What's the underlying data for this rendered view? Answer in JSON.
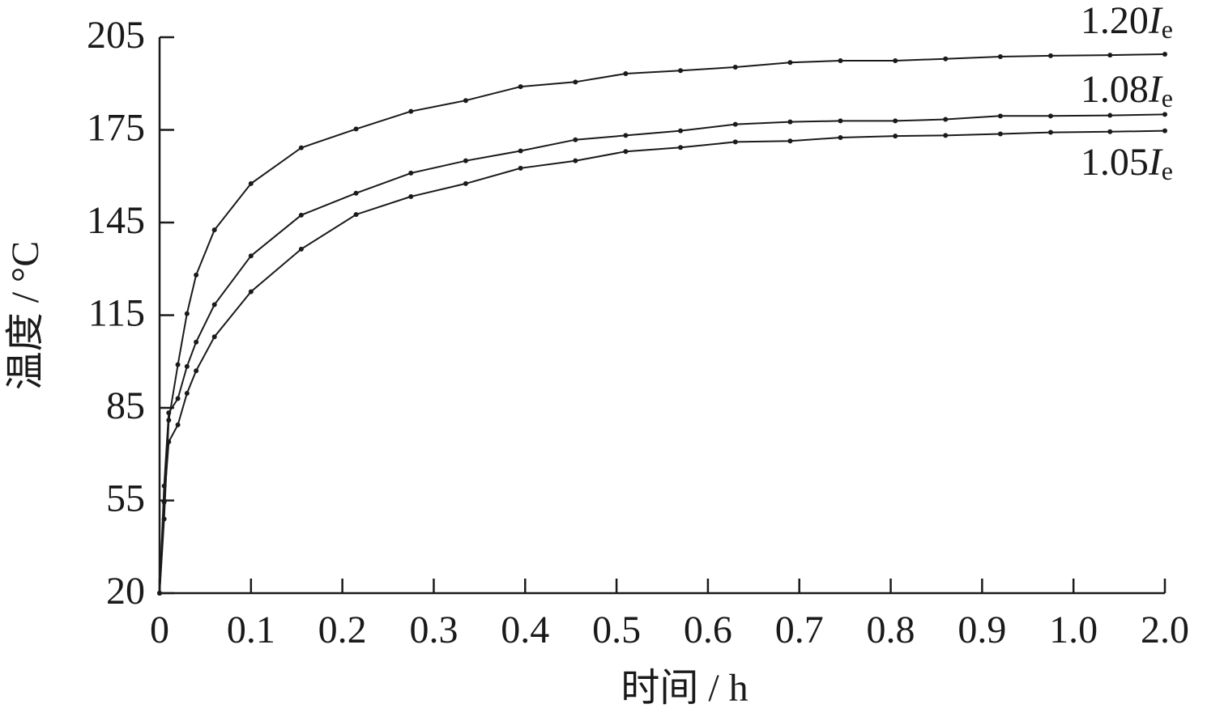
{
  "chart_data": {
    "type": "line",
    "x_label": "时间 / h",
    "y_label": "温度 / °C",
    "x": [
      0,
      0.005,
      0.01,
      0.02,
      0.03,
      0.04,
      0.06,
      0.1,
      0.155,
      0.215,
      0.275,
      0.335,
      0.395,
      0.455,
      0.51,
      0.57,
      0.63,
      0.69,
      0.745,
      0.805,
      0.86,
      0.92,
      0.975,
      1.4,
      2.0
    ],
    "series": [
      {
        "name": "1.20Ie",
        "color": "#1a1a1a",
        "values": [
          20,
          48,
          81,
          99,
          115.5,
          128,
          142.6,
          157.6,
          169.2,
          175.3,
          181,
          184.5,
          189,
          190.5,
          193.2,
          194.2,
          195.3,
          196.8,
          197.4,
          197.4,
          198,
          198.7,
          199,
          199.2,
          199.5
        ]
      },
      {
        "name": "1.08Ie",
        "color": "#1a1a1a",
        "values": [
          20,
          59.7,
          83.4,
          88,
          98.4,
          106.3,
          118.4,
          134.2,
          147.4,
          154.5,
          161,
          165,
          168.2,
          171.8,
          173.2,
          174.7,
          176.8,
          177.6,
          177.9,
          177.9,
          178.4,
          179.5,
          179.5,
          179.7,
          180
        ]
      },
      {
        "name": "1.05Ie",
        "color": "#1a1a1a",
        "values": [
          20,
          54.4,
          74,
          79.5,
          89.7,
          97,
          108,
          122.6,
          136.4,
          147.6,
          153.4,
          157.6,
          162.6,
          165,
          168,
          169.3,
          171.1,
          171.4,
          172.5,
          173,
          173.2,
          173.7,
          174.2,
          174.4,
          174.7
        ]
      }
    ],
    "xlim": [
      0,
      2.0
    ],
    "ylim": [
      20,
      205
    ],
    "xticks": [
      0,
      0.1,
      0.2,
      0.3,
      0.4,
      0.5,
      0.6,
      0.7,
      0.8,
      0.9,
      {
        "value": 1,
        "label": "1.0"
      },
      {
        "value": 2,
        "label": "2.0"
      }
    ],
    "yticks": [
      20,
      55,
      85,
      115,
      145,
      175,
      205
    ]
  }
}
